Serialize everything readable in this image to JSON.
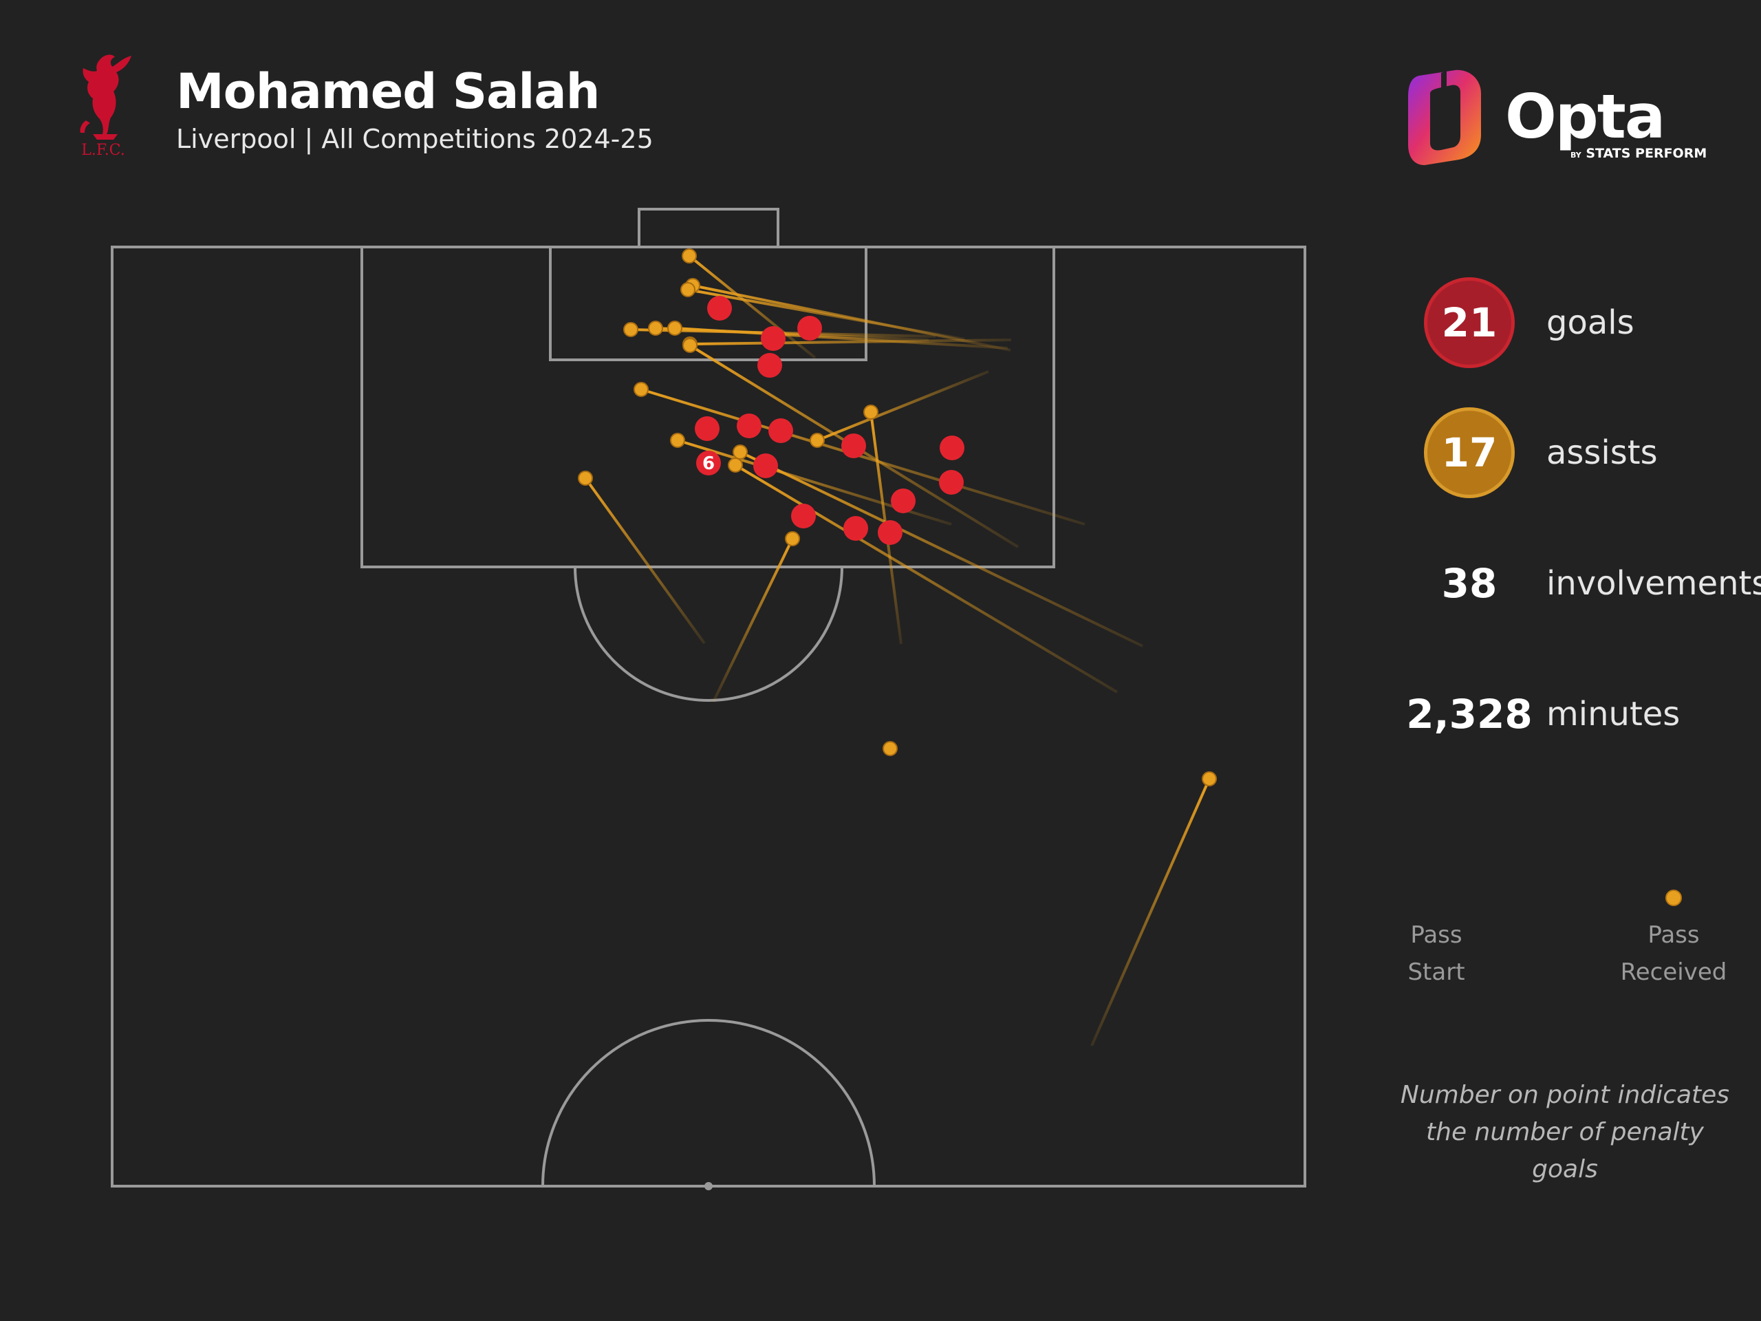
{
  "header": {
    "title": "Mohamed Salah",
    "subtitle": "Liverpool | All Competitions 2024-25",
    "club_crest_text": "L.F.C."
  },
  "brand": {
    "name": "Opta",
    "tagline_by": "BY",
    "tagline": "STATS PERFORM"
  },
  "stats": [
    {
      "value": "21",
      "label": "goals",
      "style": "goal"
    },
    {
      "value": "17",
      "label": "assists",
      "style": "assist"
    },
    {
      "value": "38",
      "label": "involvements",
      "style": "plain"
    },
    {
      "value": "2,328",
      "label": "minutes",
      "style": "plain"
    }
  ],
  "legend": {
    "start_label": "Pass\nStart",
    "end_label": "Pass\nReceived"
  },
  "note": "Number on point indicates the number of penalty goals",
  "colors": {
    "background": "#222222",
    "goal": "#e3242f",
    "assist": "#e8a020",
    "pitch_lines": "#9a9a9a",
    "crest": "#c8102e"
  },
  "chart_data": {
    "type": "scatter",
    "title": "Mohamed Salah",
    "pitch": "attacking half",
    "goals": [
      [
        1046,
        448
      ],
      [
        1124,
        492
      ],
      [
        1177,
        477
      ],
      [
        1119,
        531
      ],
      [
        1028,
        623
      ],
      [
        1089,
        619
      ],
      [
        1135,
        626
      ],
      [
        1241,
        648
      ],
      [
        1384,
        651
      ],
      [
        1113,
        677
      ],
      [
        1383,
        701
      ],
      [
        1313,
        728
      ],
      [
        1168,
        750
      ],
      [
        1244,
        768
      ],
      [
        1294,
        774
      ]
    ],
    "penalty_goals": {
      "point": [
        1030,
        673
      ],
      "count": 6
    },
    "assists": [
      {
        "start": [
          1185,
          520
        ],
        "end": [
          1002,
          372
        ]
      },
      {
        "start": [
          1469,
          509
        ],
        "end": [
          1007,
          415
        ]
      },
      {
        "start": [
          1402,
          493
        ],
        "end": [
          1000,
          421
        ]
      },
      {
        "start": [
          1360,
          489
        ],
        "end": [
          917,
          479
        ]
      },
      {
        "start": [
          1350,
          494
        ],
        "end": [
          953,
          477
        ]
      },
      {
        "start": [
          1465,
          506
        ],
        "end": [
          981,
          477
        ]
      },
      {
        "start": [
          1470,
          494
        ],
        "end": [
          1003,
          500
        ]
      },
      {
        "start": [
          1577,
          762
        ],
        "end": [
          932,
          566
        ]
      },
      {
        "start": [
          1480,
          795
        ],
        "end": [
          1003,
          502
        ]
      },
      {
        "start": [
          1437,
          540
        ],
        "end": [
          1188,
          640
        ]
      },
      {
        "start": [
          1383,
          762
        ],
        "end": [
          985,
          640
        ]
      },
      {
        "start": [
          1661,
          939
        ],
        "end": [
          1076,
          657
        ]
      },
      {
        "start": [
          1624,
          1006
        ],
        "end": [
          1069,
          676
        ]
      },
      {
        "start": [
          1310,
          936
        ],
        "end": [
          1266,
          599
        ]
      },
      {
        "start": [
          1024,
          935
        ],
        "end": [
          851,
          695
        ]
      },
      {
        "start": [
          1037,
          1020
        ],
        "end": [
          1152,
          783
        ]
      },
      {
        "start": [
          1587,
          1520
        ],
        "end": [
          1758,
          1132
        ]
      }
    ],
    "unmatched_received": [
      [
        1294,
        1088
      ]
    ]
  }
}
